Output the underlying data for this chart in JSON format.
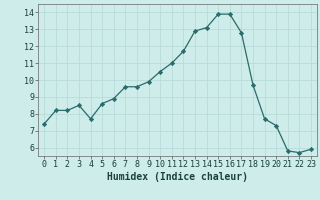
{
  "x": [
    0,
    1,
    2,
    3,
    4,
    5,
    6,
    7,
    8,
    9,
    10,
    11,
    12,
    13,
    14,
    15,
    16,
    17,
    18,
    19,
    20,
    21,
    22,
    23
  ],
  "y": [
    7.4,
    8.2,
    8.2,
    8.5,
    7.7,
    8.6,
    8.9,
    9.6,
    9.6,
    9.9,
    10.5,
    11.0,
    11.7,
    12.9,
    13.1,
    13.9,
    13.9,
    12.8,
    9.7,
    7.7,
    7.3,
    5.8,
    5.7,
    5.9
  ],
  "line_color": "#2a6b6b",
  "marker": "D",
  "marker_size": 2.2,
  "bg_color": "#ceecea",
  "grid_color": "#b8dbd9",
  "xlabel": "Humidex (Indice chaleur)",
  "xlim": [
    -0.5,
    23.5
  ],
  "ylim": [
    5.5,
    14.5
  ],
  "yticks": [
    6,
    7,
    8,
    9,
    10,
    11,
    12,
    13,
    14
  ],
  "xticks": [
    0,
    1,
    2,
    3,
    4,
    5,
    6,
    7,
    8,
    9,
    10,
    11,
    12,
    13,
    14,
    15,
    16,
    17,
    18,
    19,
    20,
    21,
    22,
    23
  ],
  "label_fontsize": 7,
  "tick_fontsize": 6
}
